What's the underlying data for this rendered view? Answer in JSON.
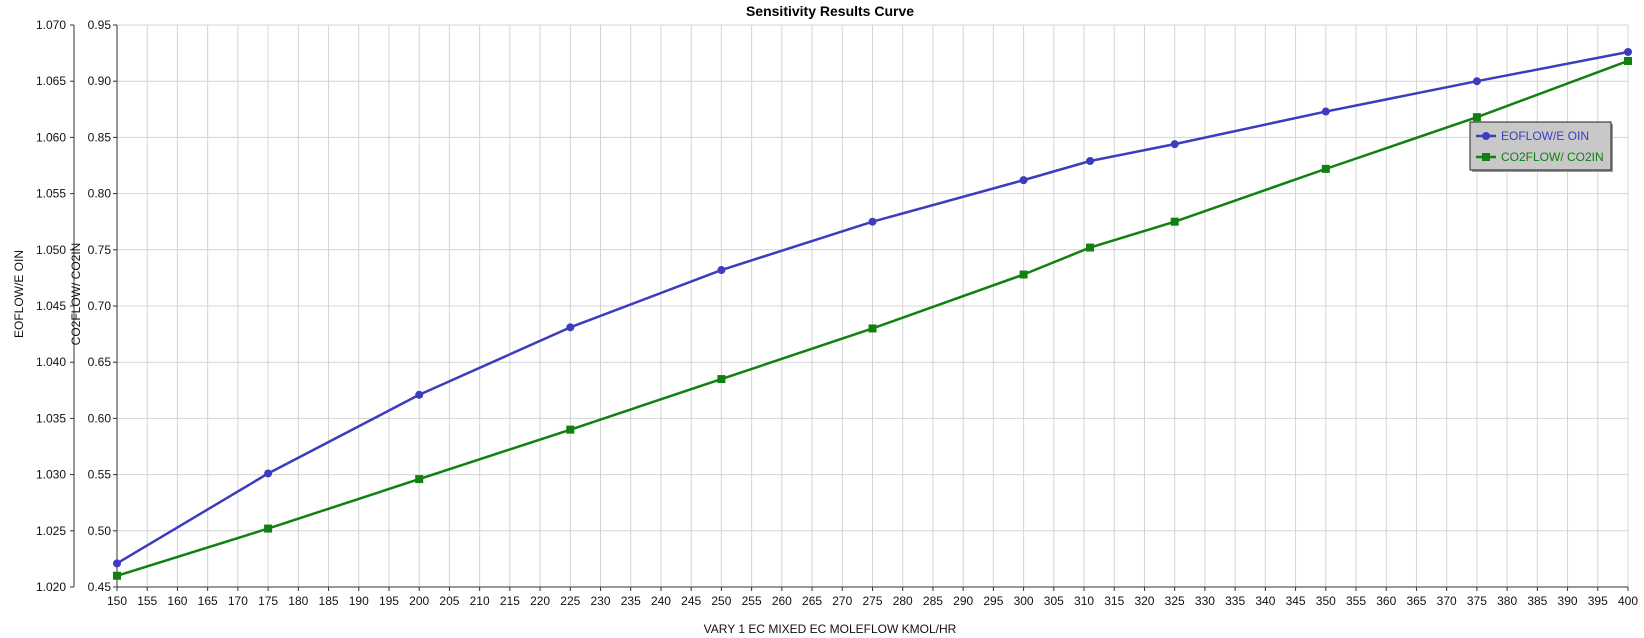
{
  "chart_data": {
    "type": "line",
    "title": "Sensitivity Results Curve",
    "xlabel": "VARY   1 EC MIXED EC MOLEFLOW KMOL/HR",
    "xlim": [
      150,
      400
    ],
    "x_ticks": [
      150,
      155,
      160,
      165,
      170,
      175,
      180,
      185,
      190,
      195,
      200,
      205,
      210,
      215,
      220,
      225,
      230,
      235,
      240,
      245,
      250,
      255,
      260,
      265,
      270,
      275,
      280,
      285,
      290,
      295,
      300,
      305,
      310,
      315,
      320,
      325,
      330,
      335,
      340,
      345,
      350,
      355,
      360,
      365,
      370,
      375,
      380,
      385,
      390,
      395,
      400
    ],
    "y_axes": [
      {
        "id": "left",
        "label": "EOFLOW/E OIN",
        "ylim": [
          1.02,
          1.07
        ],
        "ticks": [
          "1.020",
          "1.025",
          "1.030",
          "1.035",
          "1.040",
          "1.045",
          "1.050",
          "1.055",
          "1.060",
          "1.065",
          "1.070"
        ]
      },
      {
        "id": "right",
        "label": "CO2FLOW/ CO2IN",
        "ylim": [
          0.45,
          0.95
        ],
        "ticks": [
          "0.45",
          "0.50",
          "0.55",
          "0.60",
          "0.65",
          "0.70",
          "0.75",
          "0.80",
          "0.85",
          "0.90",
          "0.95"
        ]
      }
    ],
    "grid": true,
    "legend_position": "right",
    "series": [
      {
        "name": "EOFLOW/E OIN",
        "axis": "left",
        "color": "#3c3cbe",
        "marker": "circle",
        "x": [
          150,
          175,
          200,
          225,
          250,
          275,
          300,
          311,
          325,
          350,
          375,
          400
        ],
        "y": [
          1.0221,
          1.0301,
          1.0371,
          1.0431,
          1.0482,
          1.0525,
          1.0562,
          1.0579,
          1.0594,
          1.0623,
          1.065,
          1.0676
        ]
      },
      {
        "name": "CO2FLOW/ CO2IN",
        "axis": "right",
        "color": "#108010",
        "marker": "square",
        "x": [
          150,
          175,
          200,
          225,
          250,
          275,
          300,
          311,
          325,
          350,
          375,
          400
        ],
        "y": [
          0.46,
          0.502,
          0.546,
          0.59,
          0.635,
          0.68,
          0.728,
          0.752,
          0.775,
          0.822,
          0.868,
          0.918
        ]
      }
    ]
  }
}
